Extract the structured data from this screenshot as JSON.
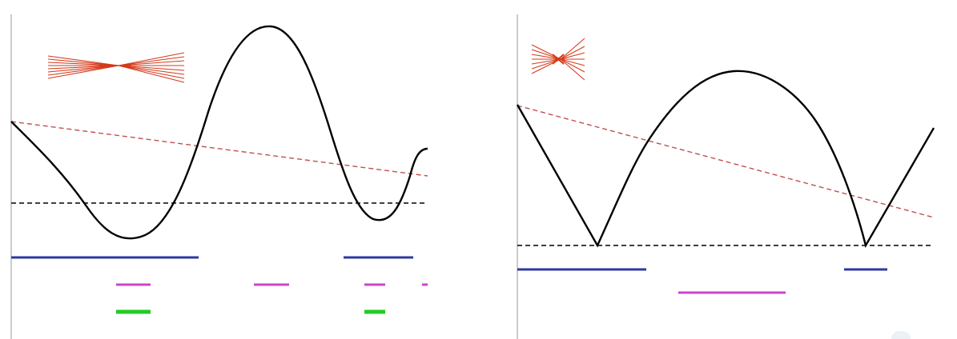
{
  "panels": [
    {
      "id": "left",
      "curve_color": "#000000",
      "threshold_color": "#000000",
      "slope_color": "#c05050",
      "band_colors": {
        "blue": "#2d3a9e",
        "magenta": "#cc44cc",
        "green": "#22cc22"
      },
      "icon": "ray-bundle-icon",
      "icon_color": "#d43a1a"
    },
    {
      "id": "right",
      "curve_color": "#000000",
      "threshold_color": "#000000",
      "slope_color": "#c05050",
      "band_colors": {
        "blue": "#2d3a9e",
        "magenta": "#cc44cc"
      },
      "icon": "ray-bundle-icon",
      "icon_color": "#d43a1a"
    }
  ]
}
